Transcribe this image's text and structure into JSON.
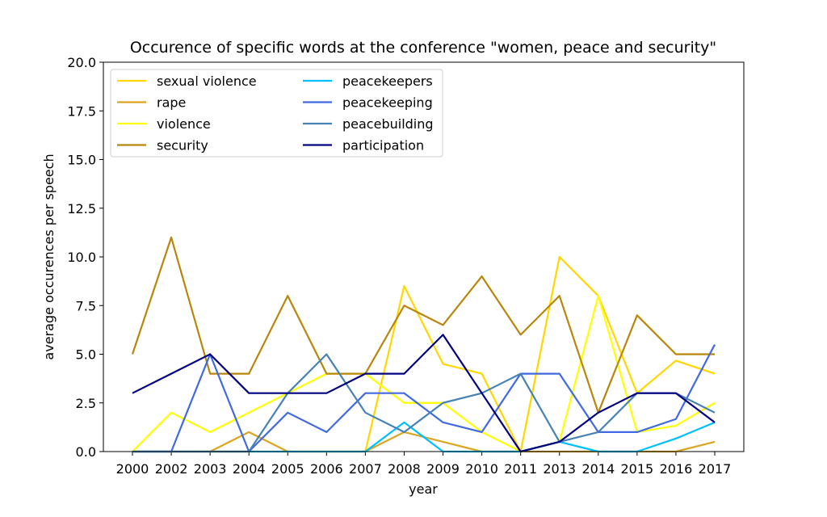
{
  "chart_data": {
    "type": "line",
    "title": "Occurence of specific words at the conference \"women, peace and security\"",
    "xlabel": "year",
    "ylabel": "average occurences per speech",
    "x": [
      "2000",
      "2002",
      "2003",
      "2004",
      "2005",
      "2006",
      "2007",
      "2008",
      "2009",
      "2010",
      "2011",
      "2013",
      "2014",
      "2015",
      "2016",
      "2017"
    ],
    "ylim": [
      0,
      20
    ],
    "yticks": [
      "0.0",
      "2.5",
      "5.0",
      "7.5",
      "10.0",
      "12.5",
      "15.0",
      "17.5",
      "20.0"
    ],
    "grid": false,
    "legend_position": "top-left",
    "series": [
      {
        "name": "sexual violence",
        "color": "#ffd700",
        "values": [
          0,
          0,
          0,
          0,
          0,
          0,
          0,
          8.5,
          4.5,
          4,
          0,
          10,
          8,
          3,
          4.67,
          4
        ]
      },
      {
        "name": "rape",
        "color": "#daa520",
        "values": [
          0,
          0,
          0,
          1,
          0,
          0,
          0,
          1,
          0.5,
          0,
          0,
          0,
          0,
          0,
          0,
          0.5
        ]
      },
      {
        "name": "violence",
        "color": "#ffff00",
        "values": [
          0,
          2,
          1,
          2,
          3,
          4,
          4,
          2.5,
          2.5,
          1,
          0,
          0.5,
          8,
          1,
          1.33,
          2.5
        ]
      },
      {
        "name": "security",
        "color": "#b8860b",
        "values": [
          5,
          11,
          4,
          4,
          8,
          4,
          4,
          7.5,
          6.5,
          9,
          6,
          8,
          2,
          7,
          5,
          5
        ]
      },
      {
        "name": "peacekeepers",
        "color": "#00bfff",
        "values": [
          0,
          0,
          0,
          0,
          0,
          0,
          0,
          1.5,
          0,
          0,
          0,
          0.5,
          0,
          0,
          0.67,
          1.5
        ]
      },
      {
        "name": "peacekeeping",
        "color": "#4169e1",
        "values": [
          0,
          0,
          5,
          0,
          2,
          1,
          3,
          3,
          1.5,
          1,
          4,
          4,
          1,
          1,
          1.67,
          5.5
        ]
      },
      {
        "name": "peacebuilding",
        "color": "#4682b4",
        "values": [
          0,
          0,
          0,
          0,
          3,
          5,
          2,
          1,
          2.5,
          3,
          4,
          0.5,
          1,
          3,
          3,
          2
        ]
      },
      {
        "name": "participation",
        "color": "#000080",
        "values": [
          3,
          4,
          5,
          3,
          3,
          3,
          4,
          4,
          6,
          3,
          0,
          0.5,
          2,
          3,
          3,
          1.5
        ]
      }
    ]
  }
}
